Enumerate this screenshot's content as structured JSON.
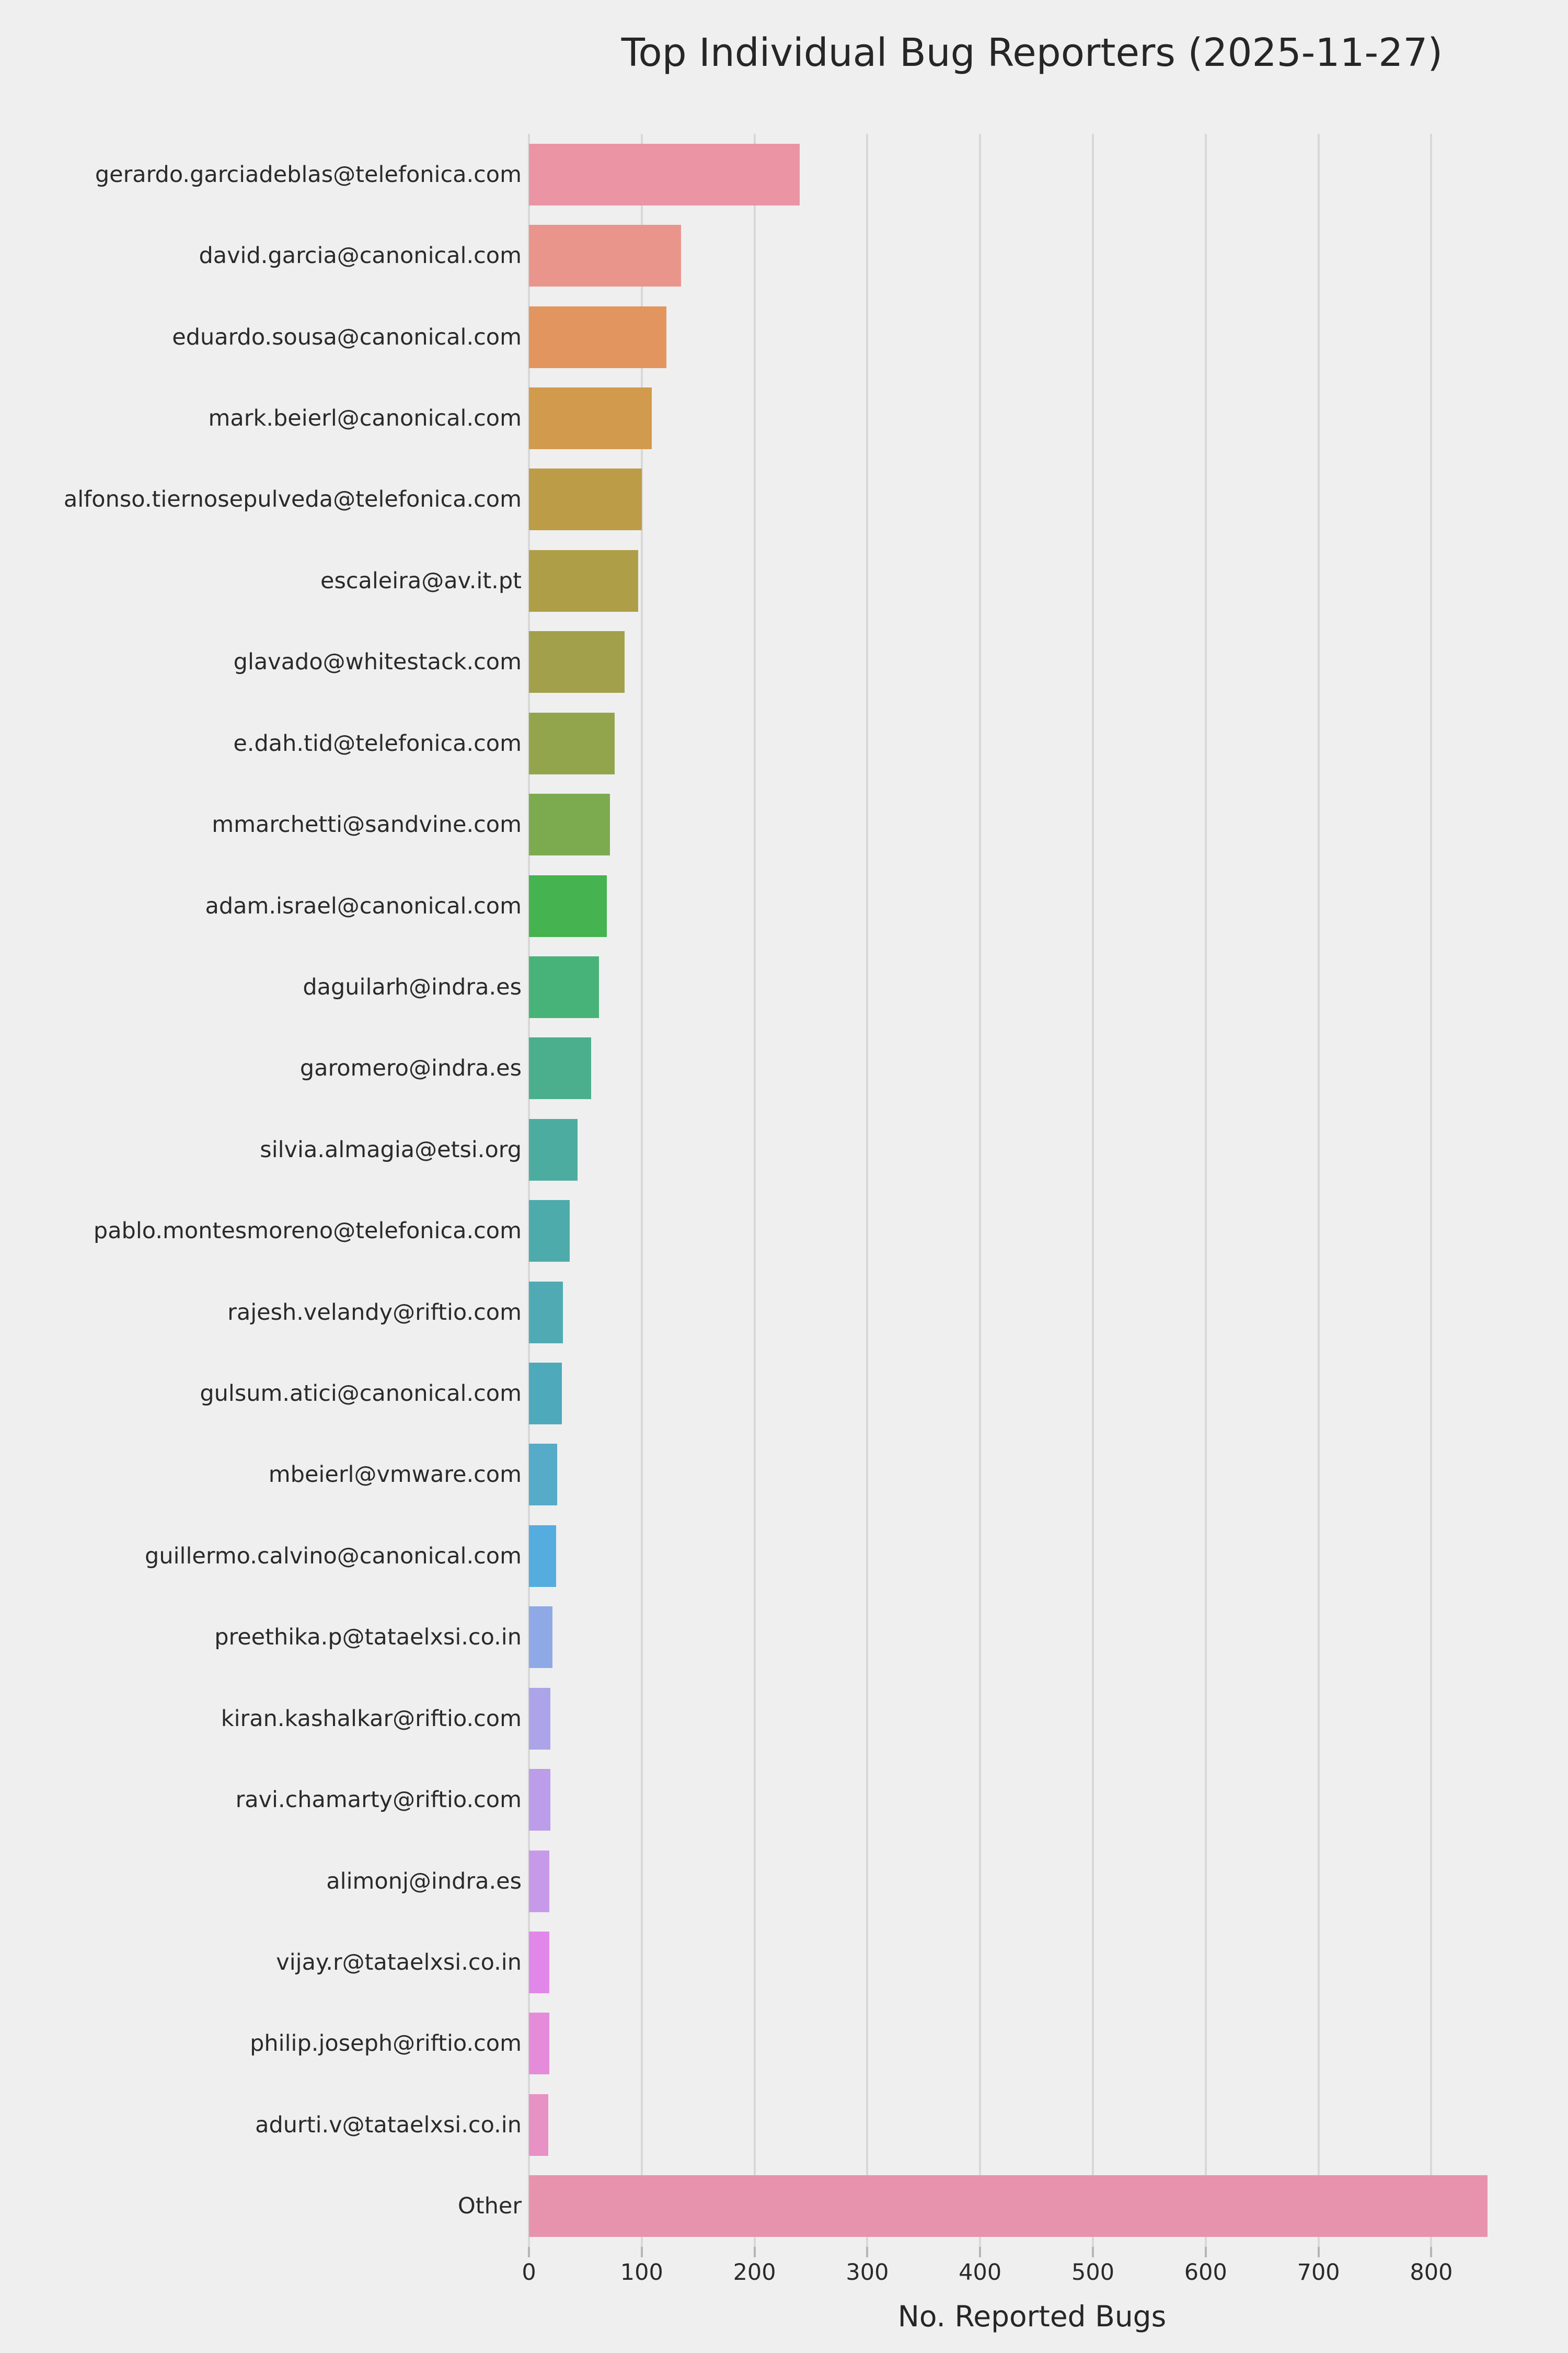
{
  "colors": {
    "background": "#efefef",
    "gridline": "#d8d8d8",
    "tick_mark": "#b5b5b5",
    "text": "#2a2a2a",
    "title_text": "#262626"
  },
  "chart_data": {
    "type": "bar",
    "orientation": "horizontal",
    "title": "Top Individual Bug Reporters (2025-11-27)",
    "xlabel": "No. Reported Bugs",
    "ylabel": "",
    "xlim": [
      0,
      892
    ],
    "x_ticks": [
      0,
      100,
      200,
      300,
      400,
      500,
      600,
      700,
      800
    ],
    "grid": true,
    "legend": false,
    "categories": [
      "gerardo.garciadeblas@telefonica.com",
      "david.garcia@canonical.com",
      "eduardo.sousa@canonical.com",
      "mark.beierl@canonical.com",
      "alfonso.tiernosepulveda@telefonica.com",
      "escaleira@av.it.pt",
      "glavado@whitestack.com",
      "e.dah.tid@telefonica.com",
      "mmarchetti@sandvine.com",
      "adam.israel@canonical.com",
      "daguilarh@indra.es",
      "garomero@indra.es",
      "silvia.almagia@etsi.org",
      "pablo.montesmoreno@telefonica.com",
      "rajesh.velandy@riftio.com",
      "gulsum.atici@canonical.com",
      "mbeierl@vmware.com",
      "guillermo.calvino@canonical.com",
      "preethika.p@tataelxsi.co.in",
      "kiran.kashalkar@riftio.com",
      "ravi.chamarty@riftio.com",
      "alimonj@indra.es",
      "vijay.r@tataelxsi.co.in",
      "philip.joseph@riftio.com",
      "adurti.v@tataelxsi.co.in",
      "Other"
    ],
    "values": [
      240,
      135,
      122,
      109,
      100,
      97,
      85,
      76,
      72,
      69,
      62,
      55,
      43,
      36,
      30,
      29,
      25,
      24,
      21,
      19,
      19,
      18,
      18,
      18,
      17,
      850
    ],
    "bar_colors": [
      "#ea94a4",
      "#e9958b",
      "#e2955e",
      "#d29a4c",
      "#bd9c48",
      "#ae9e48",
      "#a2a04b",
      "#93a54c",
      "#7cab4f",
      "#45b34f",
      "#48b378",
      "#4bae8d",
      "#4daca0",
      "#4eabab",
      "#4faab3",
      "#4ea9bb",
      "#55abc8",
      "#55acde",
      "#8ea9e6",
      "#aba4e8",
      "#bb9de9",
      "#c79ae9",
      "#e187ea",
      "#e58bd9",
      "#e891c4",
      "#e893ad"
    ]
  }
}
